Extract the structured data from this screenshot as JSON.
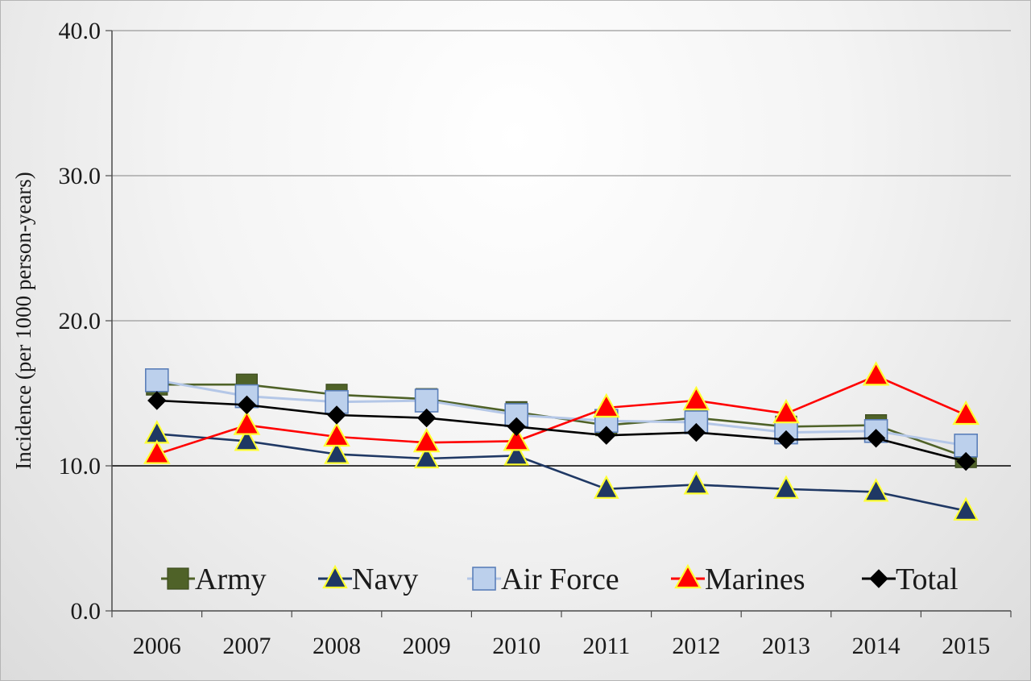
{
  "chart_data": {
    "type": "line",
    "ylabel": "Incidence (per 1000 person-years)",
    "xlabel": "",
    "x": [
      "2006",
      "2007",
      "2008",
      "2009",
      "2010",
      "2011",
      "2012",
      "2013",
      "2014",
      "2015"
    ],
    "ylim": [
      0,
      40
    ],
    "yticks": [
      "0.0",
      "10.0",
      "20.0",
      "30.0",
      "40.0"
    ],
    "grid": "horizontal",
    "legend_position": "bottom",
    "series": [
      {
        "name": "Army",
        "color": "#4f6228",
        "marker": "square",
        "values": [
          15.6,
          15.6,
          14.9,
          14.6,
          13.7,
          12.8,
          13.3,
          12.7,
          12.8,
          10.6
        ]
      },
      {
        "name": "Navy",
        "color": "#1f3864",
        "marker": "triangle",
        "values": [
          12.2,
          11.7,
          10.8,
          10.5,
          10.7,
          8.4,
          8.7,
          8.4,
          8.2,
          6.9
        ]
      },
      {
        "name": "Air Force",
        "color": "#b4c7e7",
        "marker": "square-open",
        "values": [
          15.9,
          14.8,
          14.4,
          14.5,
          13.5,
          13.1,
          13.0,
          12.3,
          12.4,
          11.4
        ]
      },
      {
        "name": "Marines",
        "color": "#ff0000",
        "marker": "triangle-red",
        "values": [
          10.8,
          12.8,
          12.0,
          11.6,
          11.7,
          14.0,
          14.5,
          13.6,
          16.2,
          13.5
        ]
      },
      {
        "name": "Total",
        "color": "#000000",
        "marker": "diamond",
        "values": [
          14.5,
          14.2,
          13.5,
          13.3,
          12.7,
          12.1,
          12.3,
          11.8,
          11.9,
          10.3
        ]
      }
    ]
  }
}
